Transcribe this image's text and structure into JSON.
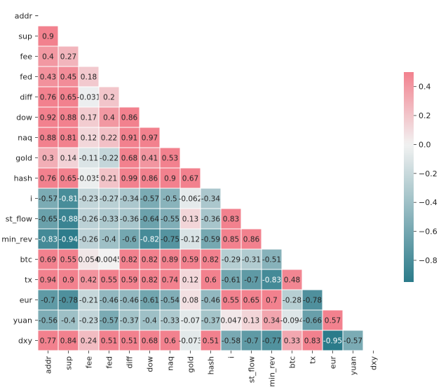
{
  "chart_data": {
    "type": "heatmap",
    "title": "",
    "labels": [
      "addr",
      "sup",
      "fee",
      "fed",
      "diff",
      "dow",
      "naq",
      "gold",
      "hash",
      "i",
      "st_flow",
      "min_rev",
      "btc",
      "tx",
      "eur",
      "yuan",
      "dxy"
    ],
    "diagonal_label": "-",
    "matrix_lower": [
      [],
      [
        0.9
      ],
      [
        0.4,
        0.27
      ],
      [
        0.43,
        0.45,
        0.18
      ],
      [
        0.76,
        0.65,
        -0.031,
        0.2
      ],
      [
        0.92,
        0.88,
        0.17,
        0.4,
        0.86
      ],
      [
        0.88,
        0.81,
        0.12,
        0.22,
        0.91,
        0.97
      ],
      [
        0.3,
        0.14,
        -0.11,
        -0.22,
        0.68,
        0.41,
        0.53
      ],
      [
        0.76,
        0.65,
        -0.035,
        0.21,
        0.99,
        0.86,
        0.9,
        0.67
      ],
      [
        -0.57,
        -0.81,
        -0.23,
        -0.27,
        -0.34,
        -0.57,
        -0.5,
        -0.062,
        -0.34
      ],
      [
        -0.65,
        -0.88,
        -0.26,
        -0.33,
        -0.36,
        -0.64,
        -0.55,
        0.13,
        -0.36,
        0.83
      ],
      [
        -0.83,
        -0.94,
        -0.26,
        -0.4,
        -0.6,
        -0.82,
        -0.75,
        -0.12,
        -0.59,
        0.85,
        0.86
      ],
      [
        0.69,
        0.55,
        0.054,
        0.0045,
        0.82,
        0.82,
        0.89,
        0.59,
        0.82,
        -0.29,
        -0.31,
        -0.51
      ],
      [
        0.94,
        0.9,
        0.42,
        0.55,
        0.59,
        0.82,
        0.74,
        0.12,
        0.6,
        -0.61,
        -0.7,
        -0.83,
        0.48
      ],
      [
        -0.7,
        -0.78,
        -0.21,
        -0.46,
        -0.46,
        -0.61,
        -0.54,
        0.08,
        -0.46,
        0.55,
        0.65,
        0.7,
        -0.28,
        -0.78
      ],
      [
        -0.56,
        -0.4,
        -0.23,
        -0.57,
        -0.37,
        -0.4,
        -0.33,
        -0.07,
        -0.37,
        0.047,
        0.13,
        0.34,
        -0.094,
        -0.66,
        0.57
      ],
      [
        0.77,
        0.84,
        0.24,
        0.51,
        0.51,
        0.68,
        0.6,
        -0.073,
        0.51,
        -0.58,
        -0.7,
        -0.77,
        0.33,
        0.83,
        -0.95,
        -0.57
      ]
    ],
    "cell_text": [
      [],
      [
        "0.9"
      ],
      [
        "0.4",
        "0.27"
      ],
      [
        "0.43",
        "0.45",
        "0.18"
      ],
      [
        "0.76",
        "0.65",
        "-0.031",
        "0.2"
      ],
      [
        "0.92",
        "0.88",
        "0.17",
        "0.4",
        "0.86"
      ],
      [
        "0.88",
        "0.81",
        "0.12",
        "0.22",
        "0.91",
        "0.97"
      ],
      [
        "0.3",
        "0.14",
        "-0.11",
        "-0.22",
        "0.68",
        "0.41",
        "0.53"
      ],
      [
        "0.76",
        "0.65",
        "-0.035",
        "0.21",
        "0.99",
        "0.86",
        "0.9",
        "0.67"
      ],
      [
        "-0.57",
        "-0.81",
        "-0.23",
        "-0.27",
        "-0.34",
        "-0.57",
        "-0.5",
        "-0.062",
        "-0.34"
      ],
      [
        "-0.65",
        "-0.88",
        "-0.26",
        "-0.33",
        "-0.36",
        "-0.64",
        "-0.55",
        "0.13",
        "-0.36",
        "0.83"
      ],
      [
        "-0.83",
        "-0.94",
        "-0.26",
        "-0.4",
        "-0.6",
        "-0.82",
        "-0.75",
        "-0.12",
        "-0.59",
        "0.85",
        "0.86"
      ],
      [
        "0.69",
        "0.55",
        "0.054",
        "0.0045",
        "0.82",
        "0.82",
        "0.89",
        "0.59",
        "0.82",
        "-0.29",
        "-0.31",
        "-0.51"
      ],
      [
        "0.94",
        "0.9",
        "0.42",
        "0.55",
        "0.59",
        "0.82",
        "0.74",
        "0.12",
        "0.6",
        "-0.61",
        "-0.7",
        "-0.83",
        "0.48"
      ],
      [
        "-0.7",
        "-0.78",
        "-0.21",
        "-0.46",
        "-0.46",
        "-0.61",
        "-0.54",
        "0.08",
        "-0.46",
        "0.55",
        "0.65",
        "0.7",
        "-0.28",
        "-0.78"
      ],
      [
        "-0.56",
        "-0.4",
        "-0.23",
        "-0.57",
        "-0.37",
        "-0.4",
        "-0.33",
        "-0.07",
        "-0.37",
        "0.047",
        "0.13",
        "0.34",
        "-0.094",
        "-0.66",
        "0.57"
      ],
      [
        "0.77",
        "0.84",
        "0.24",
        "0.51",
        "0.51",
        "0.68",
        "0.6",
        "-0.073",
        "0.51",
        "-0.58",
        "-0.7",
        "-0.77",
        "0.33",
        "0.83",
        "-0.95",
        "-0.57"
      ]
    ],
    "color_scale": {
      "type": "diverging",
      "min": -0.95,
      "max": 0.5,
      "center": 0,
      "negative_color": "#2b7b8a",
      "center_color": "#f2f2f2",
      "positive_color": "#f2818e"
    },
    "colorbar": {
      "ticks": [
        0.4,
        0.2,
        0.0,
        -0.2,
        -0.4,
        -0.6,
        -0.8
      ],
      "tick_labels": [
        "0.4",
        "0.2",
        "0.0",
        "−0.2",
        "−0.4",
        "−0.6",
        "−0.8"
      ],
      "placement": "right"
    },
    "grid": false,
    "legend": "none"
  }
}
